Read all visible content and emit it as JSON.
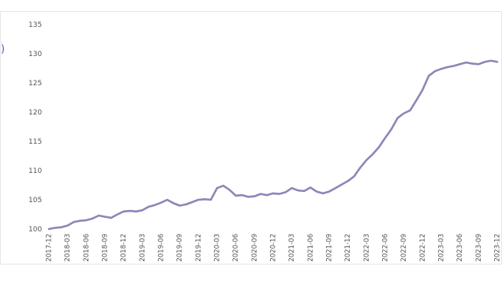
{
  "chart_data": {
    "type": "line",
    "title": "",
    "xlabel": "",
    "ylabel": "",
    "ylim": [
      100,
      135
    ],
    "yticks": [
      100,
      105,
      110,
      115,
      120,
      125,
      130,
      135
    ],
    "grid": false,
    "legend": "none",
    "color": "#8b87b8",
    "x_tick_labels": [
      "2017-12",
      "2018-03",
      "2018-06",
      "2018-09",
      "2018-12",
      "2019-03",
      "2019-06",
      "2019-09",
      "2019-12",
      "2020-03",
      "2020-06",
      "2020-09",
      "2020-12",
      "2021-03",
      "2021-06",
      "2021-09",
      "2021-12",
      "2022-03",
      "2022-06",
      "2022-09",
      "2022-12",
      "2023-03",
      "2023-06",
      "2023-09",
      "2023-12"
    ],
    "series": [
      {
        "x": [
          "2017-12",
          "2018-01",
          "2018-02",
          "2018-03",
          "2018-04",
          "2018-05",
          "2018-06",
          "2018-07",
          "2018-08",
          "2018-09",
          "2018-10",
          "2018-11",
          "2018-12",
          "2019-01",
          "2019-02",
          "2019-03",
          "2019-04",
          "2019-05",
          "2019-06",
          "2019-07",
          "2019-08",
          "2019-09",
          "2019-10",
          "2019-11",
          "2019-12",
          "2020-01",
          "2020-02",
          "2020-03",
          "2020-04",
          "2020-05",
          "2020-06",
          "2020-07",
          "2020-08",
          "2020-09",
          "2020-10",
          "2020-11",
          "2020-12",
          "2021-01",
          "2021-02",
          "2021-03",
          "2021-04",
          "2021-05",
          "2021-06",
          "2021-07",
          "2021-08",
          "2021-09",
          "2021-10",
          "2021-11",
          "2021-12",
          "2022-01",
          "2022-02",
          "2022-03",
          "2022-04",
          "2022-05",
          "2022-06",
          "2022-07",
          "2022-08",
          "2022-09",
          "2022-10",
          "2022-11",
          "2022-12",
          "2023-01",
          "2023-02",
          "2023-03",
          "2023-04",
          "2023-05",
          "2023-06",
          "2023-07",
          "2023-08",
          "2023-09",
          "2023-10",
          "2023-11",
          "2023-12"
        ],
        "values": [
          100.0,
          100.2,
          100.3,
          100.6,
          101.2,
          101.4,
          101.5,
          101.8,
          102.3,
          102.1,
          101.9,
          102.5,
          103.0,
          103.1,
          103.0,
          103.2,
          103.8,
          104.1,
          104.5,
          105.0,
          104.4,
          104.0,
          104.2,
          104.6,
          105.0,
          105.1,
          105.0,
          107.0,
          107.4,
          106.7,
          105.7,
          105.8,
          105.5,
          105.6,
          106.0,
          105.8,
          106.1,
          106.0,
          106.3,
          107.0,
          106.6,
          106.5,
          107.1,
          106.4,
          106.1,
          106.4,
          107.0,
          107.6,
          108.2,
          109.0,
          110.5,
          111.8,
          112.8,
          114.0,
          115.6,
          117.1,
          119.0,
          119.8,
          120.3,
          122.0,
          123.8,
          126.2,
          127.0,
          127.4,
          127.7,
          127.9,
          128.2,
          128.5,
          128.3,
          128.2,
          128.6,
          128.8,
          128.6
        ]
      }
    ]
  },
  "side_glyph": ")"
}
